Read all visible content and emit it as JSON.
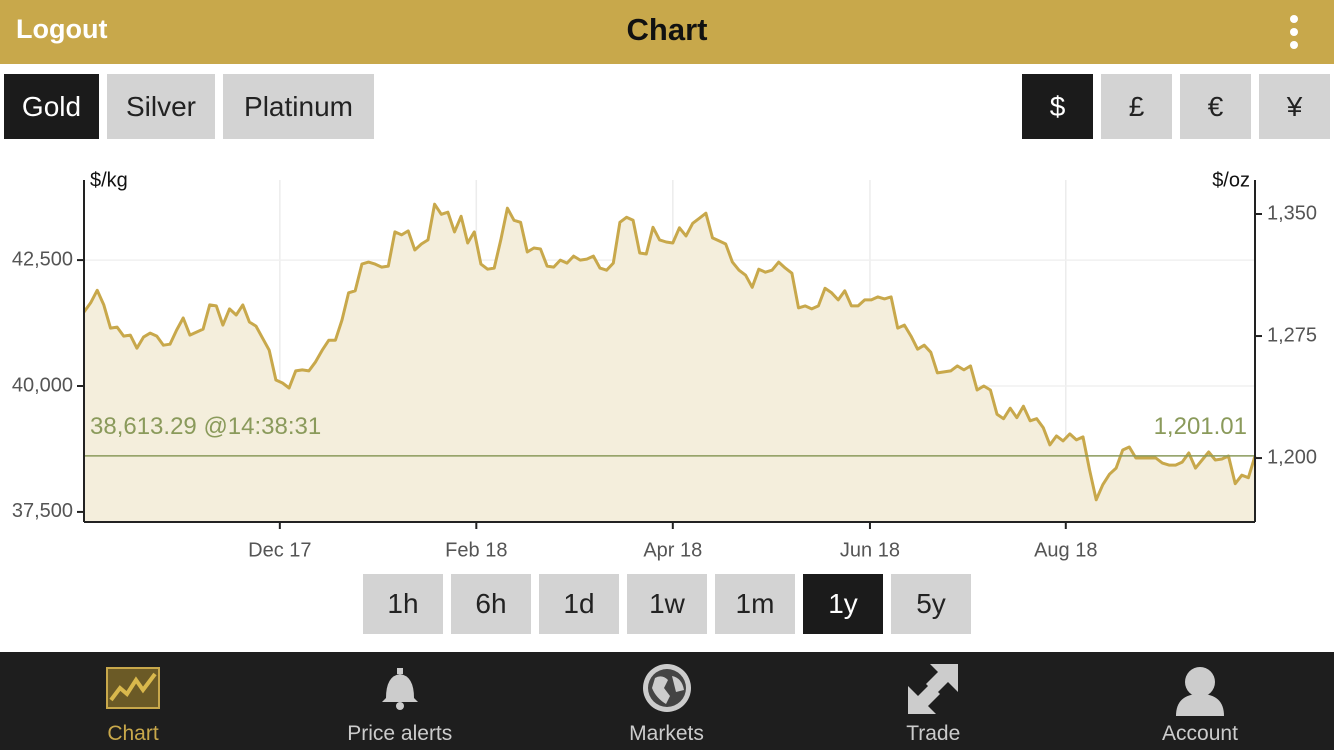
{
  "header": {
    "left": "Logout",
    "title": "Chart"
  },
  "metals": {
    "items": [
      "Gold",
      "Silver",
      "Platinum"
    ],
    "selected": 0
  },
  "currencies": {
    "items": [
      "$",
      "£",
      "€",
      "¥"
    ],
    "selected": 0
  },
  "ranges": {
    "items": [
      "1h",
      "6h",
      "1d",
      "1w",
      "1m",
      "1y",
      "5y"
    ],
    "selected": 5
  },
  "tabs": {
    "items": [
      "Chart",
      "Price alerts",
      "Markets",
      "Trade",
      "Account"
    ],
    "selected": 0
  },
  "chart_data": {
    "type": "line",
    "ylabel": "$/kg",
    "y2label": "$/oz",
    "ylim": [
      37300,
      44090
    ],
    "yticks": [
      {
        "value": 37500,
        "label": "37,500"
      },
      {
        "value": 40000,
        "label": "40,000"
      },
      {
        "value": 42500,
        "label": "42,500"
      }
    ],
    "y2lim": [
      1160.7,
      1370.9
    ],
    "y2ticks": [
      {
        "value": 1200,
        "label": "1,200"
      },
      {
        "value": 1275,
        "label": "1,275"
      },
      {
        "value": 1350,
        "label": "1,350"
      }
    ],
    "xlim": [
      0,
      177
    ],
    "xticks": [
      {
        "value": 29.6,
        "label": "Dec 17"
      },
      {
        "value": 59.3,
        "label": "Feb 18"
      },
      {
        "value": 89,
        "label": "Apr 18"
      },
      {
        "value": 118.8,
        "label": "Jun 18"
      },
      {
        "value": 148.4,
        "label": "Aug 18"
      }
    ],
    "grid": true,
    "current_value": 38613.29,
    "current_label": "38,613.29 @14:38:31",
    "current_y2_label": "1,201.01",
    "current_color": "#8a9a5b",
    "fill_color": "#f4eedc",
    "series": [
      {
        "color": "#c8a84b",
        "values": [
          41470,
          41650,
          41900,
          41610,
          41150,
          41170,
          40990,
          41010,
          40750,
          40970,
          41050,
          40990,
          40810,
          40830,
          41110,
          41350,
          41010,
          41070,
          41130,
          41610,
          41590,
          41210,
          41530,
          41410,
          41610,
          41270,
          41190,
          40950,
          40710,
          40120,
          40060,
          39960,
          40300,
          40320,
          40300,
          40480,
          40710,
          40910,
          40910,
          41310,
          41850,
          41890,
          42420,
          42460,
          42420,
          42360,
          42380,
          43060,
          43000,
          43080,
          42700,
          42820,
          42900,
          43610,
          43410,
          43450,
          43060,
          43370,
          42840,
          43060,
          42420,
          42320,
          42340,
          42900,
          43530,
          43290,
          43250,
          42660,
          42740,
          42720,
          42380,
          42360,
          42500,
          42440,
          42580,
          42500,
          42520,
          42580,
          42340,
          42300,
          42440,
          43250,
          43350,
          43290,
          42640,
          42620,
          43150,
          42900,
          42860,
          42840,
          43140,
          42980,
          43230,
          43330,
          43430,
          42940,
          42880,
          42820,
          42460,
          42300,
          42200,
          41960,
          42320,
          42260,
          42300,
          42460,
          42340,
          42240,
          41550,
          41590,
          41530,
          41590,
          41940,
          41850,
          41710,
          41890,
          41590,
          41590,
          41710,
          41710,
          41770,
          41730,
          41770,
          41150,
          41210,
          40990,
          40730,
          40810,
          40670,
          40260,
          40280,
          40300,
          40400,
          40320,
          40400,
          39920,
          40000,
          39920,
          39440,
          39350,
          39560,
          39370,
          39600,
          39310,
          39350,
          39170,
          38830,
          39010,
          38910,
          39050,
          38930,
          38990,
          38330,
          37740,
          38040,
          38250,
          38370,
          38730,
          38790,
          38570,
          38570,
          38570,
          38570,
          38470,
          38430,
          38430,
          38490,
          38670,
          38370,
          38530,
          38690,
          38530,
          38550,
          38610,
          38060,
          38230,
          38180,
          38610
        ]
      }
    ]
  }
}
